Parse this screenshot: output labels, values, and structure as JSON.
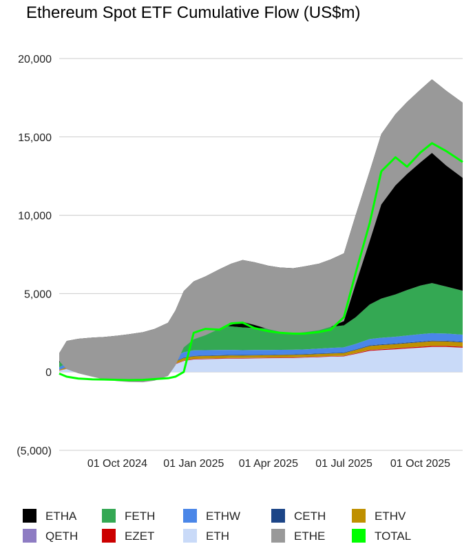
{
  "chart_data": {
    "type": "area",
    "title": "Ethereum Spot ETF Cumulative Flow (US$m)",
    "xlabel": "",
    "ylabel": "",
    "ylim": [
      -5000,
      20000
    ],
    "y_ticks": [
      20000,
      15000,
      10000,
      5000,
      0,
      -5000
    ],
    "y_tick_labels": [
      "20,000",
      "15,000",
      "10,000",
      "5,000",
      "0",
      "(5,000)"
    ],
    "x_range": [
      "2024-07-23",
      "2025-11-21"
    ],
    "x_ticks": [
      "2024-10-01",
      "2025-01-01",
      "2025-04-01",
      "2025-07-01",
      "2025-10-01"
    ],
    "x_tick_labels": [
      "01 Oct 2024",
      "01 Jan 2025",
      "01 Apr 2025",
      "01 Jul 2025",
      "01 Oct 2025"
    ],
    "grid": "horizontal",
    "legend_position": "bottom",
    "stacking": "positive flows stacked above zero, ETHE stacked below zero; TOTAL drawn as a line",
    "x": [
      "2024-07-23",
      "2024-08-01",
      "2024-08-15",
      "2024-09-01",
      "2024-09-15",
      "2024-10-01",
      "2024-10-15",
      "2024-11-01",
      "2024-11-15",
      "2024-12-01",
      "2024-12-10",
      "2024-12-20",
      "2025-01-01",
      "2025-01-15",
      "2025-02-01",
      "2025-02-15",
      "2025-03-01",
      "2025-03-15",
      "2025-04-01",
      "2025-04-15",
      "2025-05-01",
      "2025-05-15",
      "2025-06-01",
      "2025-06-15",
      "2025-07-01",
      "2025-07-15",
      "2025-08-01",
      "2025-08-15",
      "2025-09-01",
      "2025-09-15",
      "2025-10-01",
      "2025-10-15",
      "2025-11-01",
      "2025-11-21"
    ],
    "series": [
      {
        "name": "ETH",
        "color": "#c9daf8",
        "values": [
          80,
          200,
          250,
          270,
          280,
          290,
          300,
          310,
          330,
          350,
          500,
          700,
          800,
          820,
          840,
          860,
          860,
          870,
          880,
          890,
          900,
          920,
          950,
          980,
          1000,
          1150,
          1350,
          1400,
          1450,
          1500,
          1550,
          1600,
          1600,
          1550
        ]
      },
      {
        "name": "EZET",
        "color": "#cc0000",
        "values": [
          10,
          20,
          20,
          20,
          20,
          20,
          20,
          20,
          20,
          20,
          25,
          30,
          30,
          30,
          30,
          30,
          30,
          30,
          30,
          30,
          30,
          30,
          30,
          30,
          30,
          40,
          50,
          50,
          55,
          55,
          60,
          60,
          60,
          60
        ]
      },
      {
        "name": "QETH",
        "color": "#8e7cc3",
        "values": [
          5,
          8,
          8,
          8,
          8,
          8,
          8,
          8,
          8,
          8,
          8,
          8,
          8,
          8,
          8,
          8,
          8,
          8,
          8,
          8,
          8,
          8,
          8,
          8,
          8,
          8,
          8,
          8,
          8,
          8,
          8,
          8,
          8,
          8
        ]
      },
      {
        "name": "ETHV",
        "color": "#bf9000",
        "values": [
          40,
          80,
          90,
          95,
          95,
          100,
          100,
          105,
          110,
          115,
          130,
          150,
          160,
          160,
          160,
          155,
          150,
          150,
          150,
          150,
          150,
          150,
          160,
          160,
          170,
          200,
          250,
          260,
          260,
          270,
          280,
          290,
          280,
          270
        ]
      },
      {
        "name": "CETH",
        "color": "#1c4587",
        "values": [
          10,
          20,
          20,
          20,
          20,
          20,
          20,
          20,
          20,
          25,
          30,
          35,
          35,
          35,
          35,
          35,
          35,
          35,
          35,
          35,
          35,
          35,
          35,
          35,
          35,
          40,
          45,
          45,
          45,
          45,
          45,
          45,
          45,
          45
        ]
      },
      {
        "name": "ETHW",
        "color": "#4a86e8",
        "values": [
          150,
          250,
          260,
          270,
          280,
          290,
          300,
          300,
          310,
          320,
          330,
          340,
          350,
          340,
          330,
          320,
          310,
          310,
          300,
          300,
          300,
          300,
          310,
          320,
          330,
          350,
          400,
          420,
          430,
          450,
          470,
          470,
          460,
          450
        ]
      },
      {
        "name": "FETH",
        "color": "#34a853",
        "values": [
          300,
          500,
          520,
          530,
          530,
          540,
          560,
          580,
          600,
          700,
          900,
          1200,
          1400,
          1500,
          1550,
          1500,
          1450,
          1400,
          1380,
          1350,
          1300,
          1300,
          1320,
          1350,
          1400,
          1700,
          2200,
          2500,
          2700,
          2900,
          3100,
          3200,
          3000,
          2800
        ]
      },
      {
        "name": "ETHA",
        "color": "#000000",
        "values": [
          600,
          900,
          950,
          980,
          1000,
          1050,
          1100,
          1200,
          1350,
          1600,
          2000,
          2700,
          3000,
          3200,
          3600,
          4000,
          4300,
          4200,
          4000,
          3900,
          3900,
          4000,
          4100,
          4300,
          4600,
          6500,
          8500,
          10500,
          11500,
          12000,
          12500,
          13000,
          12500,
          12000
        ]
      },
      {
        "name": "ETHE",
        "color": "#999999",
        "values": [
          -500,
          -1800,
          -2200,
          -2500,
          -2700,
          -2900,
          -3050,
          -3200,
          -3300,
          -3400,
          -3500,
          -3600,
          -3700,
          -3750,
          -3800,
          -3900,
          -3950,
          -4000,
          -4050,
          -4100,
          -4150,
          -4200,
          -4250,
          -4300,
          -4330,
          -4400,
          -4450,
          -4500,
          -4550,
          -4600,
          -4650,
          -4700,
          -4780,
          -4800
        ]
      },
      {
        "name": "TOTAL",
        "color": "#00ff00",
        "type": "line",
        "values": [
          -100,
          -300,
          -420,
          -470,
          -480,
          -500,
          -520,
          -500,
          -450,
          -400,
          -300,
          0,
          2500,
          2750,
          2700,
          3100,
          3150,
          2800,
          2600,
          2500,
          2450,
          2450,
          2550,
          2700,
          3500,
          6300,
          9500,
          12800,
          13700,
          13100,
          14000,
          14600,
          14100,
          13400
        ]
      }
    ]
  }
}
